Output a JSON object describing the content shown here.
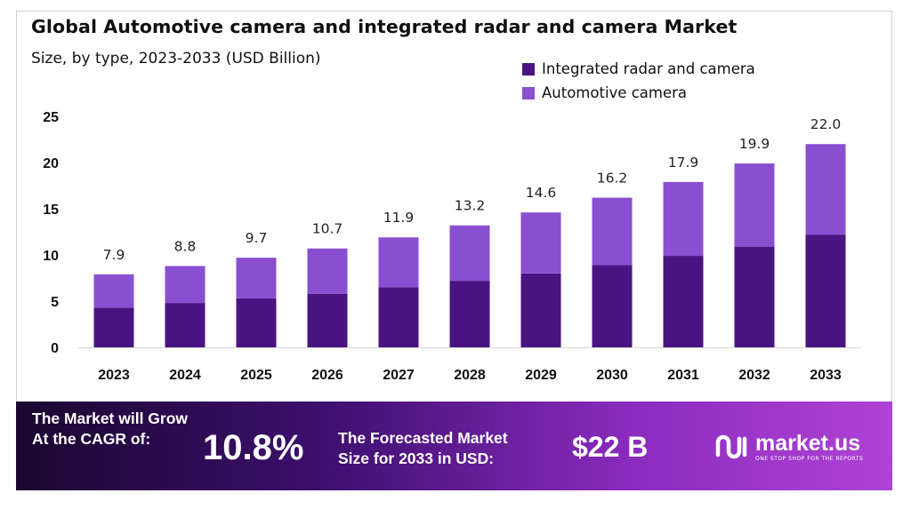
{
  "header": {
    "title": "Global Automotive camera and integrated radar and camera Market",
    "subtitle": "Size, by type, 2023-2033 (USD Billion)"
  },
  "legend": [
    {
      "label": "Integrated radar and camera",
      "color": "#4a1382"
    },
    {
      "label": "Automotive camera",
      "color": "#8a4fd1"
    }
  ],
  "chart_data": {
    "type": "bar",
    "stacked": true,
    "categories": [
      "2023",
      "2024",
      "2025",
      "2026",
      "2027",
      "2028",
      "2029",
      "2030",
      "2031",
      "2032",
      "2033"
    ],
    "series": [
      {
        "name": "Integrated radar and camera",
        "color": "#4a1382",
        "values": [
          4.3,
          4.8,
          5.3,
          5.8,
          6.5,
          7.2,
          8.0,
          8.9,
          9.9,
          10.9,
          12.2
        ]
      },
      {
        "name": "Automotive camera",
        "color": "#8a4fd1",
        "values": [
          3.6,
          4.0,
          4.4,
          4.9,
          5.4,
          6.0,
          6.6,
          7.3,
          8.0,
          9.0,
          9.8
        ]
      }
    ],
    "totals": [
      7.9,
      8.8,
      9.7,
      10.7,
      11.9,
      13.2,
      14.6,
      16.2,
      17.9,
      19.9,
      22.0
    ],
    "total_labels": [
      "7.9",
      "8.8",
      "9.7",
      "10.7",
      "11.9",
      "13.2",
      "14.6",
      "16.2",
      "17.9",
      "19.9",
      "22.0"
    ],
    "yticks": [
      0,
      5,
      10,
      15,
      20,
      25
    ],
    "ylim": [
      0,
      25
    ],
    "grid": false,
    "legend_position": "top-right"
  },
  "banner": {
    "grow_line1": "The Market will Grow",
    "grow_line2": "At the CAGR of:",
    "cagr_value": "10.8%",
    "forecast_line1": "The Forecasted Market",
    "forecast_line2": "Size for 2033 in USD:",
    "forecast_value": "$22 B",
    "logo_text": "market.us",
    "logo_tagline": "ONE STOP SHOP FOR THE REPORTS"
  }
}
